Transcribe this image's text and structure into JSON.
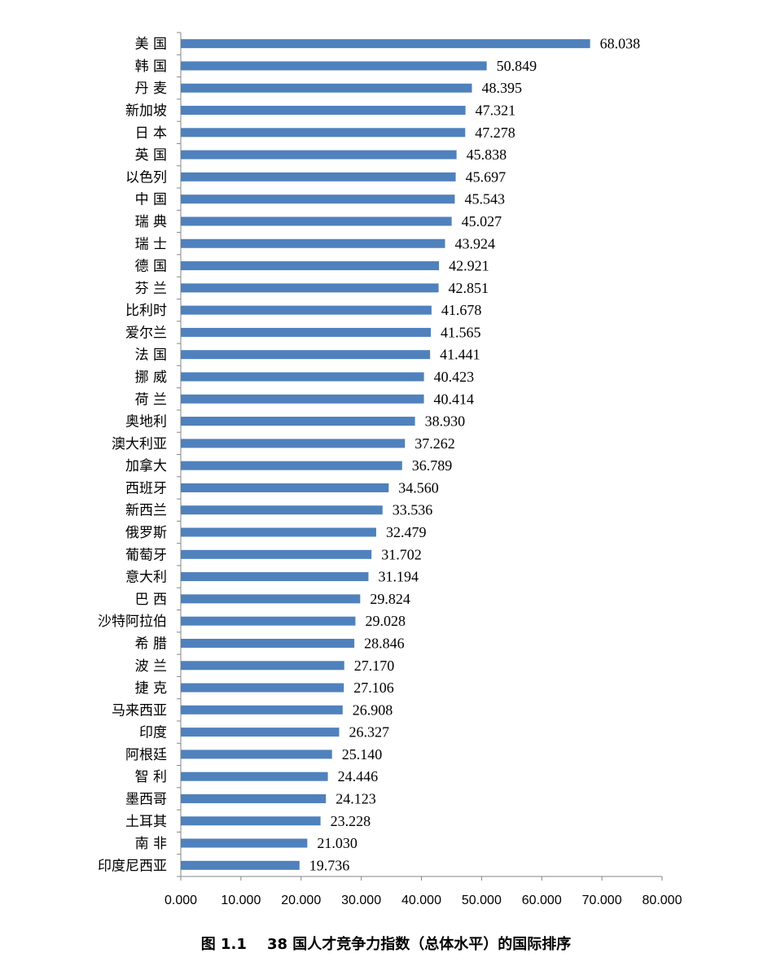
{
  "chart_data": {
    "type": "bar",
    "orientation": "horizontal",
    "title": "图 1.1    38 国人才竞争力指数（总体水平）的国际排序",
    "xlabel": "",
    "ylabel": "",
    "xlim": [
      0,
      80
    ],
    "x_ticks": [
      "0.000",
      "10.000",
      "20.000",
      "30.000",
      "40.000",
      "50.000",
      "60.000",
      "70.000",
      "80.000"
    ],
    "grid": false,
    "legend": "none",
    "bar_color": "#4F81BD",
    "categories": [
      "美 国",
      "韩 国",
      "丹 麦",
      "新加坡",
      "日 本",
      "英 国",
      "以色列",
      "中 国",
      "瑞 典",
      "瑞 士",
      "德 国",
      "芬 兰",
      "比利时",
      "爱尔兰",
      "法 国",
      "挪 威",
      "荷 兰",
      "奥地利",
      "澳大利亚",
      "加拿大",
      "西班牙",
      "新西兰",
      "俄罗斯",
      "葡萄牙",
      "意大利",
      "巴 西",
      "沙特阿拉伯",
      "希 腊",
      "波 兰",
      "捷 克",
      "马来西亚",
      "印度",
      "阿根廷",
      "智 利",
      "墨西哥",
      "土耳其",
      "南 非",
      "印度尼西亚"
    ],
    "values": [
      68.038,
      50.849,
      48.395,
      47.321,
      47.278,
      45.838,
      45.697,
      45.543,
      45.027,
      43.924,
      42.921,
      42.851,
      41.678,
      41.565,
      41.441,
      40.423,
      40.414,
      38.93,
      37.262,
      36.789,
      34.56,
      33.536,
      32.479,
      31.702,
      31.194,
      29.824,
      29.028,
      28.846,
      27.17,
      27.106,
      26.908,
      26.327,
      25.14,
      24.446,
      24.123,
      23.228,
      21.03,
      19.736
    ],
    "value_labels": [
      "68.038",
      "50.849",
      "48.395",
      "47.321",
      "47.278",
      "45.838",
      "45.697",
      "45.543",
      "45.027",
      "43.924",
      "42.921",
      "42.851",
      "41.678",
      "41.565",
      "41.441",
      "40.423",
      "40.414",
      "38.930",
      "37.262",
      "36.789",
      "34.560",
      "33.536",
      "32.479",
      "31.702",
      "31.194",
      "29.824",
      "29.028",
      "28.846",
      "27.170",
      "27.106",
      "26.908",
      "26.327",
      "25.140",
      "24.446",
      "24.123",
      "23.228",
      "21.030",
      "19.736"
    ]
  }
}
